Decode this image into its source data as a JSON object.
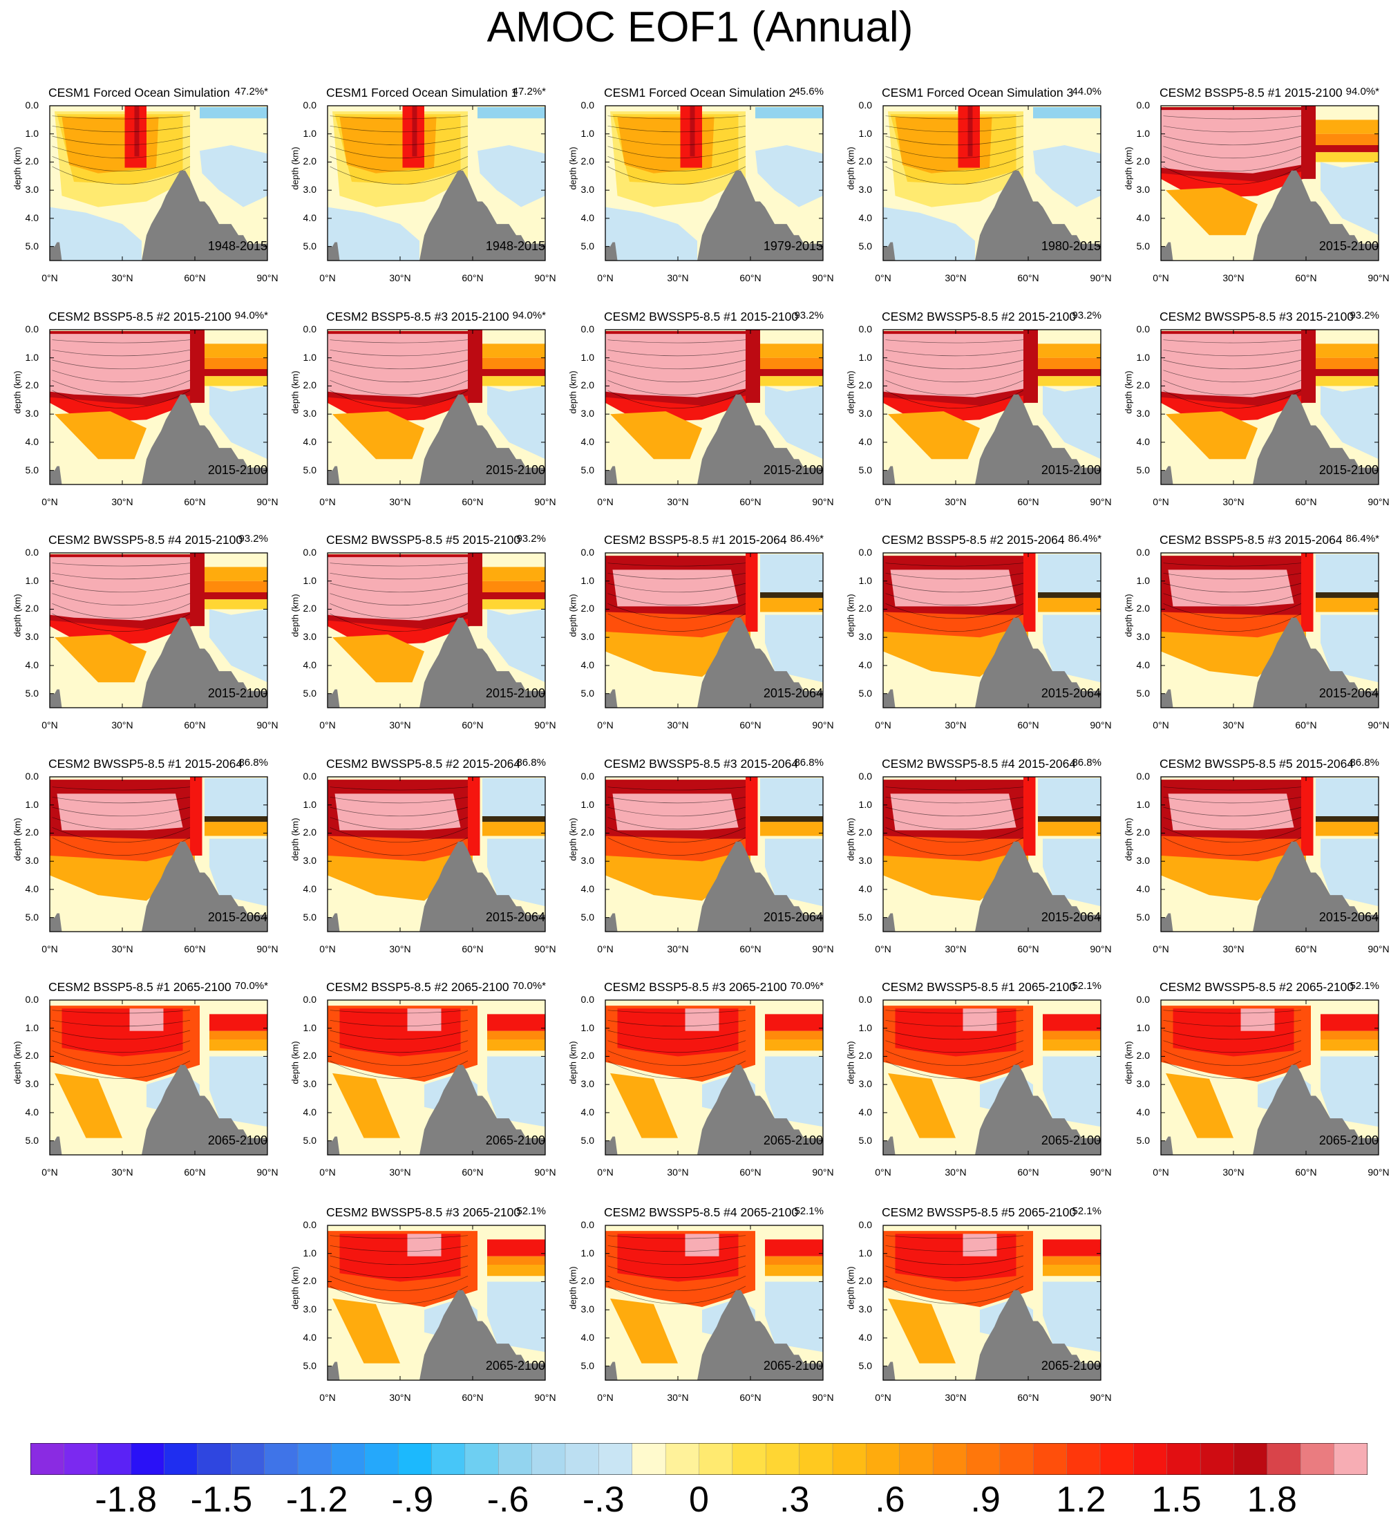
{
  "title": "AMOC EOF1 (Annual)",
  "chart_data": {
    "type": "heatmap",
    "description_variable": "AMOC EOF1 regression pattern (Atlantic meridional overturning streamfunction)",
    "xlabel": "",
    "ylabel": "depth (km)",
    "x_ticks": [
      "0°N",
      "30°N",
      "60°N",
      "90°N"
    ],
    "xlim": [
      0,
      90
    ],
    "y_ticks": [
      "0.0",
      "1.0",
      "2.0",
      "3.0",
      "4.0",
      "5.0"
    ],
    "ylim": [
      0.0,
      5.5
    ],
    "panels": [
      {
        "title": "CESM1 Forced Ocean Simulation",
        "variance": "47.2%*",
        "period": "1948-2015",
        "regime": "cesm1"
      },
      {
        "title": "CESM1 Forced Ocean Simulation 1",
        "variance": "47.2%*",
        "period": "1948-2015",
        "regime": "cesm1"
      },
      {
        "title": "CESM1 Forced Ocean Simulation 2",
        "variance": "45.6%",
        "period": "1979-2015",
        "regime": "cesm1"
      },
      {
        "title": "CESM1 Forced Ocean Simulation 3",
        "variance": "44.0%",
        "period": "1980-2015",
        "regime": "cesm1"
      },
      {
        "title": "CESM2 BSSP5-8.5 #1 2015-2100",
        "variance": "94.0%*",
        "period": "2015-2100",
        "regime": "full"
      },
      {
        "title": "CESM2 BSSP5-8.5 #2 2015-2100",
        "variance": "94.0%*",
        "period": "2015-2100",
        "regime": "full"
      },
      {
        "title": "CESM2 BSSP5-8.5 #3 2015-2100",
        "variance": "94.0%*",
        "period": "2015-2100",
        "regime": "full"
      },
      {
        "title": "CESM2 BWSSP5-8.5 #1 2015-2100",
        "variance": "93.2%",
        "period": "2015-2100",
        "regime": "full"
      },
      {
        "title": "CESM2 BWSSP5-8.5 #2 2015-2100",
        "variance": "93.2%",
        "period": "2015-2100",
        "regime": "full"
      },
      {
        "title": "CESM2 BWSSP5-8.5 #3 2015-2100",
        "variance": "93.2%",
        "period": "2015-2100",
        "regime": "full"
      },
      {
        "title": "CESM2 BWSSP5-8.5 #4 2015-2100",
        "variance": "93.2%",
        "period": "2015-2100",
        "regime": "full"
      },
      {
        "title": "CESM2 BWSSP5-8.5 #5 2015-2100",
        "variance": "93.2%",
        "period": "2015-2100",
        "regime": "full"
      },
      {
        "title": "CESM2 BSSP5-8.5 #1 2015-2064",
        "variance": "86.4%*",
        "period": "2015-2064",
        "regime": "early"
      },
      {
        "title": "CESM2 BSSP5-8.5 #2 2015-2064",
        "variance": "86.4%*",
        "period": "2015-2064",
        "regime": "early"
      },
      {
        "title": "CESM2 BSSP5-8.5 #3 2015-2064",
        "variance": "86.4%*",
        "period": "2015-2064",
        "regime": "early"
      },
      {
        "title": "CESM2 BWSSP5-8.5 #1 2015-2064",
        "variance": "86.8%",
        "period": "2015-2064",
        "regime": "early"
      },
      {
        "title": "CESM2 BWSSP5-8.5 #2 2015-2064",
        "variance": "86.8%",
        "period": "2015-2064",
        "regime": "early"
      },
      {
        "title": "CESM2 BWSSP5-8.5 #3 2015-2064",
        "variance": "86.8%",
        "period": "2015-2064",
        "regime": "early"
      },
      {
        "title": "CESM2 BWSSP5-8.5 #4 2015-2064",
        "variance": "86.8%",
        "period": "2015-2064",
        "regime": "early"
      },
      {
        "title": "CESM2 BWSSP5-8.5 #5 2015-2064",
        "variance": "86.8%",
        "period": "2015-2064",
        "regime": "early"
      },
      {
        "title": "CESM2 BSSP5-8.5 #1 2065-2100",
        "variance": "70.0%*",
        "period": "2065-2100",
        "regime": "late"
      },
      {
        "title": "CESM2 BSSP5-8.5 #2 2065-2100",
        "variance": "70.0%*",
        "period": "2065-2100",
        "regime": "late"
      },
      {
        "title": "CESM2 BSSP5-8.5 #3 2065-2100",
        "variance": "70.0%*",
        "period": "2065-2100",
        "regime": "late"
      },
      {
        "title": "CESM2 BWSSP5-8.5 #1 2065-2100",
        "variance": "52.1%",
        "period": "2065-2100",
        "regime": "late"
      },
      {
        "title": "CESM2 BWSSP5-8.5 #2 2065-2100",
        "variance": "52.1%",
        "period": "2065-2100",
        "regime": "late"
      },
      {
        "title": "CESM2 BWSSP5-8.5 #3 2065-2100",
        "variance": "52.1%",
        "period": "2065-2100",
        "regime": "late"
      },
      {
        "title": "CESM2 BWSSP5-8.5 #4 2065-2100",
        "variance": "52.1%",
        "period": "2065-2100",
        "regime": "late"
      },
      {
        "title": "CESM2 BWSSP5-8.5 #5 2065-2100",
        "variance": "52.1%",
        "period": "2065-2100",
        "regime": "late"
      }
    ],
    "colorbar": {
      "labels": [
        "-1.8",
        "-1.5",
        "-1.2",
        "-.9",
        "-.6",
        "-.3",
        "0",
        ".3",
        ".6",
        ".9",
        "1.2",
        "1.5",
        "1.8"
      ],
      "label_values": [
        -1.8,
        -1.5,
        -1.2,
        -0.9,
        -0.6,
        -0.3,
        0,
        0.3,
        0.6,
        0.9,
        1.2,
        1.5,
        1.8
      ],
      "levels_min": -2.1,
      "levels_max": 2.1,
      "level_step": 0.1,
      "colors": [
        "#8a2be2",
        "#7b29f0",
        "#5b22f6",
        "#2a11f7",
        "#1f2ef0",
        "#2f46e0",
        "#3b5ee0",
        "#3f74e8",
        "#3b86f0",
        "#2f97f6",
        "#25a8fb",
        "#1cb9fd",
        "#47c6f8",
        "#6ecff2",
        "#93d4ef",
        "#abd9f0",
        "#bcdff2",
        "#c9e5f4",
        "#fffacd",
        "#fff29a",
        "#ffea70",
        "#ffdf45",
        "#ffd633",
        "#ffc91f",
        "#ffbb14",
        "#ffab0d",
        "#ff9b0b",
        "#ff8a0b",
        "#ff770b",
        "#ff630b",
        "#ff4f0b",
        "#ff370b",
        "#ff230b",
        "#f5150f",
        "#e20f12",
        "#cf0c12",
        "#bc0a12",
        "#d9444a",
        "#ea7c80",
        "#f7adb4"
      ]
    }
  }
}
